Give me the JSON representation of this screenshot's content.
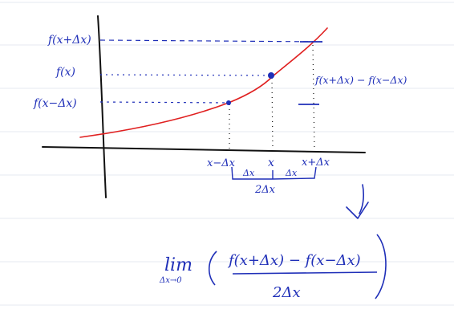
{
  "colors": {
    "ink": "#1f2fb8",
    "curve": "#e02020",
    "axis": "#111111",
    "ruling": "#d9dcea"
  },
  "labels": {
    "y_upper": "f(x+Δx)",
    "y_mid": "f(x)",
    "y_lower": "f(x−Δx)",
    "x_left": "x−Δx",
    "x_mid": "x",
    "x_right": "x+Δx",
    "delta_left": "Δx",
    "delta_right": "Δx",
    "span": "2Δx",
    "difference": "f(x+Δx) − f(x−Δx)"
  },
  "formula": {
    "lim": "lim",
    "lim_sub": "Δx→0",
    "numerator": "f(x+Δx) − f(x−Δx)",
    "denominator": "2Δx"
  }
}
